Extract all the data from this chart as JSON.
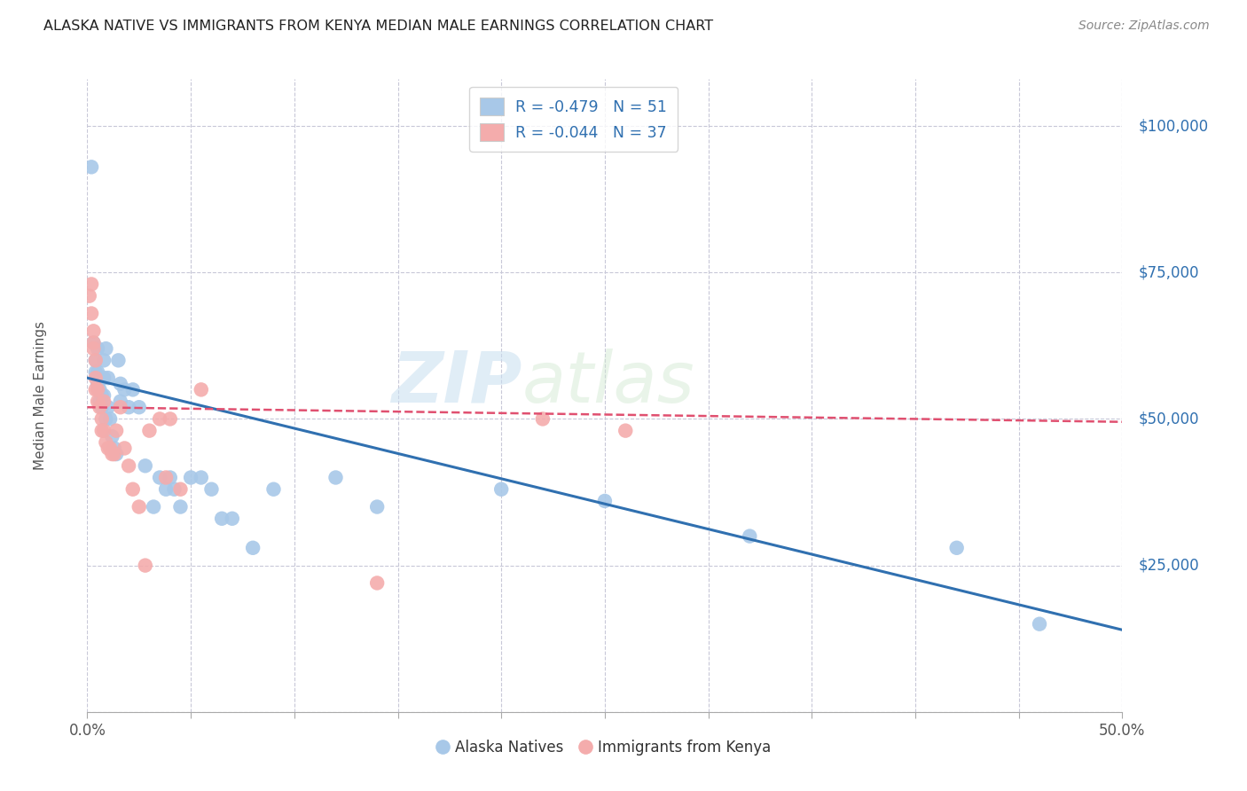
{
  "title": "ALASKA NATIVE VS IMMIGRANTS FROM KENYA MEDIAN MALE EARNINGS CORRELATION CHART",
  "source": "Source: ZipAtlas.com",
  "ylabel": "Median Male Earnings",
  "ytick_values": [
    0,
    25000,
    50000,
    75000,
    100000
  ],
  "ytick_labels": [
    "",
    "$25,000",
    "$50,000",
    "$75,000",
    "$100,000"
  ],
  "xlim": [
    0.0,
    0.5
  ],
  "ylim": [
    0,
    108000
  ],
  "watermark_zip": "ZIP",
  "watermark_atlas": "atlas",
  "legend_r1": "R = -0.479   N = 51",
  "legend_r2": "R = -0.044   N = 37",
  "blue_color": "#A8C8E8",
  "pink_color": "#F4ACAC",
  "line_blue": "#3070B0",
  "line_pink": "#E05070",
  "background": "#ffffff",
  "grid_color": "#C8C8D8",
  "alaska_x": [
    0.002,
    0.003,
    0.004,
    0.004,
    0.005,
    0.005,
    0.005,
    0.006,
    0.006,
    0.007,
    0.007,
    0.007,
    0.008,
    0.008,
    0.008,
    0.009,
    0.009,
    0.01,
    0.01,
    0.011,
    0.012,
    0.013,
    0.014,
    0.015,
    0.016,
    0.016,
    0.018,
    0.02,
    0.022,
    0.025,
    0.028,
    0.032,
    0.035,
    0.038,
    0.04,
    0.042,
    0.045,
    0.05,
    0.055,
    0.06,
    0.065,
    0.07,
    0.08,
    0.09,
    0.12,
    0.14,
    0.2,
    0.25,
    0.32,
    0.42,
    0.46
  ],
  "alaska_y": [
    93000,
    63000,
    60000,
    58000,
    62000,
    58000,
    56000,
    55000,
    53000,
    57000,
    54000,
    52000,
    60000,
    57000,
    54000,
    50000,
    62000,
    57000,
    52000,
    50000,
    47000,
    45000,
    44000,
    60000,
    56000,
    53000,
    55000,
    52000,
    55000,
    52000,
    42000,
    35000,
    40000,
    38000,
    40000,
    38000,
    35000,
    40000,
    40000,
    38000,
    33000,
    33000,
    28000,
    38000,
    40000,
    35000,
    38000,
    36000,
    30000,
    28000,
    15000
  ],
  "kenya_x": [
    0.001,
    0.002,
    0.002,
    0.003,
    0.003,
    0.003,
    0.004,
    0.004,
    0.004,
    0.005,
    0.005,
    0.006,
    0.007,
    0.007,
    0.008,
    0.008,
    0.009,
    0.01,
    0.011,
    0.012,
    0.013,
    0.014,
    0.016,
    0.018,
    0.02,
    0.022,
    0.025,
    0.028,
    0.03,
    0.035,
    0.038,
    0.04,
    0.045,
    0.055,
    0.14,
    0.22,
    0.26
  ],
  "kenya_y": [
    71000,
    73000,
    68000,
    65000,
    63000,
    62000,
    60000,
    57000,
    55000,
    55000,
    53000,
    52000,
    50000,
    48000,
    48000,
    53000,
    46000,
    45000,
    45000,
    44000,
    44000,
    48000,
    52000,
    45000,
    42000,
    38000,
    35000,
    25000,
    48000,
    50000,
    40000,
    50000,
    38000,
    55000,
    22000,
    50000,
    48000
  ],
  "blue_trendline_x0": 0.0,
  "blue_trendline_y0": 57000,
  "blue_trendline_x1": 0.5,
  "blue_trendline_y1": 14000,
  "pink_trendline_x0": 0.0,
  "pink_trendline_y0": 52000,
  "pink_trendline_x1": 0.5,
  "pink_trendline_y1": 49500,
  "xtick_positions": [
    0.0,
    0.05,
    0.1,
    0.15,
    0.2,
    0.25,
    0.3,
    0.35,
    0.4,
    0.45,
    0.5
  ],
  "bottom_legend_labels": [
    "Alaska Natives",
    "Immigrants from Kenya"
  ]
}
